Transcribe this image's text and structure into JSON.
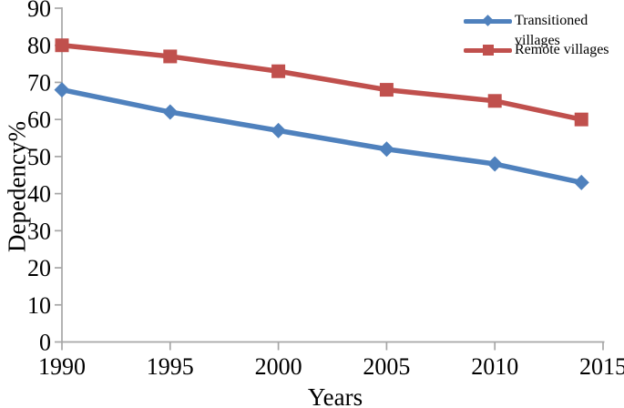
{
  "chart_data": {
    "type": "line",
    "x": [
      1990,
      1995,
      2000,
      2005,
      2010,
      2014
    ],
    "series": [
      {
        "name": "Transitioned villages",
        "values": [
          68,
          62,
          57,
          52,
          48,
          43
        ],
        "color": "#4F81BD",
        "marker": "diamond"
      },
      {
        "name": "Remote villages",
        "values": [
          80,
          77,
          73,
          68,
          65,
          60
        ],
        "color": "#C0504D",
        "marker": "square"
      }
    ],
    "title": "",
    "xlabel": "Years",
    "ylabel": "Depedency%",
    "xlim": [
      1990,
      2015
    ],
    "ylim": [
      0,
      90
    ],
    "x_ticks": [
      1990,
      1995,
      2000,
      2005,
      2010,
      2015
    ],
    "y_ticks": [
      0,
      10,
      20,
      30,
      40,
      50,
      60,
      70,
      80,
      90
    ],
    "grid": false,
    "legend_position": "top-right",
    "axis_color": "#A6A6A6",
    "text_color": "#000000",
    "background_color": "#FFFFFF"
  }
}
